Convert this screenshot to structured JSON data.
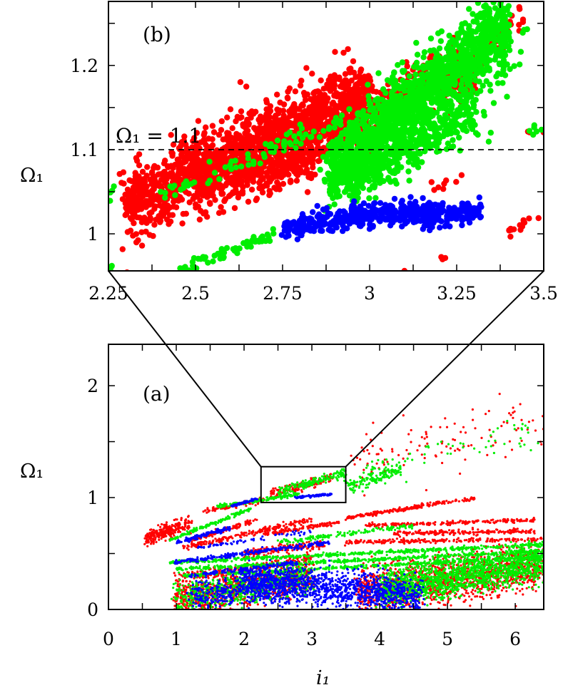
{
  "chart_data": [
    {
      "id": "b",
      "type": "scatter",
      "panel_label": "(b)",
      "ylabel": "Ω₁",
      "xlabel": "",
      "xlim": [
        2.25,
        3.5
      ],
      "ylim": [
        0.956,
        1.276
      ],
      "xticks": [
        2.25,
        2.5,
        2.75,
        3,
        3.25,
        3.5
      ],
      "xtick_labels": [
        "2.25",
        "2.5",
        "2.75",
        "3",
        "3.25",
        "3.5"
      ],
      "xminor_step": 0.125,
      "yticks": [
        1,
        1.1,
        1.2
      ],
      "ytick_labels": [
        "1",
        "1.1",
        "1.2"
      ],
      "yminor_step": 0.05,
      "reference_line": {
        "y": 1.1,
        "label": "Ω₁ = 1.1",
        "style": "dashed"
      },
      "marker_size": "large",
      "series": [
        {
          "name": "red",
          "color": "#ff0000",
          "bands": [
            [
              2.3,
              1.035,
              3.0,
              1.165,
              0.022,
              1400
            ],
            [
              2.6,
              1.08,
              3.3,
              1.2,
              0.018,
              600
            ],
            [
              2.5,
              1.06,
              2.85,
              1.09,
              0.015,
              300
            ],
            [
              3.2,
              1.17,
              3.45,
              1.265,
              0.01,
              60
            ],
            [
              2.28,
              1.025,
              2.35,
              1.035,
              0.005,
              6
            ],
            [
              3.17,
              1.055,
              3.27,
              1.068,
              0.003,
              8
            ],
            [
              3.39,
              1.0,
              3.5,
              1.028,
              0.003,
              14
            ],
            [
              3.2,
              0.97,
              3.22,
              0.972,
              0.001,
              3
            ],
            [
              3.1,
              0.956,
              3.1,
              0.956,
              0.0,
              1
            ],
            [
              3.45,
              1.12,
              3.5,
              1.125,
              0.002,
              3
            ]
          ]
        },
        {
          "name": "green",
          "color": "#00ee00",
          "bands": [
            [
              2.88,
              1.07,
              3.4,
              1.25,
              0.022,
              1500
            ],
            [
              2.95,
              1.06,
              3.3,
              1.15,
              0.015,
              400
            ],
            [
              2.45,
              0.956,
              2.75,
              1.003,
              0.003,
              60
            ],
            [
              2.4,
              1.045,
              2.92,
              1.135,
              0.006,
              70
            ],
            [
              3.3,
              1.12,
              3.45,
              1.23,
              0.02,
              25
            ],
            [
              3.44,
              1.115,
              3.5,
              1.128,
              0.004,
              6
            ],
            [
              2.25,
              1.04,
              2.27,
              1.06,
              0.005,
              4
            ],
            [
              2.25,
              0.956,
              2.26,
              0.962,
              0.002,
              4
            ]
          ]
        },
        {
          "name": "blue",
          "color": "#0000ff",
          "bands": [
            [
              2.75,
              1.005,
              2.95,
              1.022,
              0.006,
              150
            ],
            [
              2.95,
              1.022,
              3.2,
              1.025,
              0.007,
              250
            ],
            [
              3.15,
              1.018,
              3.32,
              1.028,
              0.006,
              120
            ]
          ]
        }
      ]
    },
    {
      "id": "a",
      "type": "scatter",
      "panel_label": "(a)",
      "ylabel": "Ω₁",
      "xlabel": "i₁",
      "xlim": [
        0,
        6.42
      ],
      "ylim": [
        0,
        2.37
      ],
      "xticks": [
        0,
        1,
        2,
        3,
        4,
        5,
        6
      ],
      "xtick_labels": [
        "0",
        "1",
        "2",
        "3",
        "4",
        "5",
        "6"
      ],
      "xminor_step": 0.5,
      "yticks": [
        0,
        1,
        2
      ],
      "ytick_labels": [
        "0",
        "1",
        "2"
      ],
      "yminor_step": 0.5,
      "zoom_box": {
        "x": [
          2.25,
          3.5
        ],
        "y": [
          0.956,
          1.276
        ]
      },
      "marker_size": "small",
      "series": [
        {
          "name": "red",
          "color": "#ff0000",
          "bands": [
            [
              0.55,
              0.63,
              1.2,
              0.78,
              0.04,
              260
            ],
            [
              1.1,
              0.55,
              3.0,
              0.8,
              0.012,
              200
            ],
            [
              1.2,
              0.62,
              2.2,
              0.8,
              0.01,
              120
            ],
            [
              1.4,
              0.88,
              2.3,
              0.98,
              0.01,
              80
            ],
            [
              3.5,
              0.82,
              4.6,
              0.92,
              0.008,
              150
            ],
            [
              4.5,
              0.92,
              5.4,
              0.99,
              0.008,
              80
            ],
            [
              2.3,
              0.67,
              3.4,
              0.78,
              0.008,
              120
            ],
            [
              3.8,
              0.75,
              6.3,
              0.8,
              0.008,
              200
            ],
            [
              4.2,
              0.68,
              6.3,
              0.7,
              0.01,
              200
            ],
            [
              3.5,
              0.6,
              6.4,
              0.63,
              0.01,
              200
            ],
            [
              2.4,
              1.03,
              3.3,
              1.18,
              0.02,
              150
            ],
            [
              3.6,
              1.3,
              6.4,
              1.7,
              0.12,
              120
            ],
            [
              1.0,
              0.1,
              3.0,
              0.3,
              0.08,
              900
            ],
            [
              3.7,
              0.15,
              6.4,
              0.4,
              0.1,
              1500
            ],
            [
              0.95,
              0.28,
              3.0,
              0.45,
              0.02,
              200
            ],
            [
              2.0,
              0.5,
              3.2,
              0.58,
              0.02,
              150
            ]
          ]
        },
        {
          "name": "green",
          "color": "#00ee00",
          "bands": [
            [
              0.9,
              0.42,
              6.4,
              0.58,
              0.008,
              500
            ],
            [
              1.0,
              0.36,
              6.4,
              0.52,
              0.008,
              500
            ],
            [
              1.1,
              0.3,
              6.4,
              0.47,
              0.008,
              400
            ],
            [
              0.9,
              0.62,
              2.1,
              0.9,
              0.008,
              150
            ],
            [
              1.6,
              0.92,
              2.8,
              1.03,
              0.008,
              150
            ],
            [
              2.5,
              1.05,
              3.5,
              1.22,
              0.02,
              160
            ],
            [
              3.5,
              1.1,
              4.3,
              1.26,
              0.03,
              150
            ],
            [
              3.8,
              1.25,
              6.3,
              1.6,
              0.08,
              60
            ],
            [
              2.5,
              0.6,
              4.5,
              0.75,
              0.01,
              150
            ],
            [
              1.0,
              0.1,
              3.0,
              0.3,
              0.08,
              600
            ],
            [
              4.0,
              0.18,
              6.4,
              0.42,
              0.08,
              1500
            ]
          ]
        },
        {
          "name": "blue",
          "color": "#0000ff",
          "bands": [
            [
              1.8,
              0.92,
              2.2,
              0.99,
              0.005,
              60
            ],
            [
              2.75,
              1.0,
              3.3,
              1.03,
              0.006,
              80
            ],
            [
              1.0,
              0.6,
              1.8,
              0.73,
              0.01,
              120
            ],
            [
              1.3,
              0.55,
              3.0,
              0.7,
              0.008,
              60
            ],
            [
              0.95,
              0.42,
              3.3,
              0.6,
              0.01,
              250
            ],
            [
              1.2,
              0.3,
              2.8,
              0.42,
              0.01,
              120
            ],
            [
              2.0,
              0.25,
              4.6,
              0.12,
              0.08,
              1200
            ],
            [
              1.2,
              0.12,
              2.8,
              0.25,
              0.07,
              400
            ]
          ]
        }
      ]
    }
  ]
}
